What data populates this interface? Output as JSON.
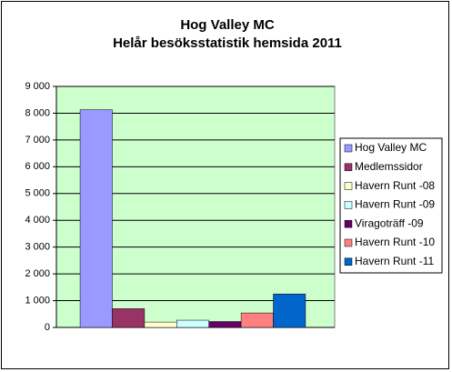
{
  "chart_data": {
    "type": "bar",
    "title": "Hog Valley MC",
    "subtitle": "Helår besöksstatistik hemsida 2011",
    "categories": [
      null
    ],
    "series": [
      {
        "name": "Hog Valley MC",
        "color": "#9999ff",
        "values": [
          8130
        ]
      },
      {
        "name": "Medlemssidor",
        "color": "#993366",
        "values": [
          700
        ]
      },
      {
        "name": "Havern Runt -08",
        "color": "#ffffcc",
        "values": [
          200
        ]
      },
      {
        "name": "Havern Runt -09",
        "color": "#ccffff",
        "values": [
          270
        ]
      },
      {
        "name": "Viragoträff -09",
        "color": "#660066",
        "values": [
          220
        ]
      },
      {
        "name": "Havern Runt -10",
        "color": "#ff8080",
        "values": [
          540
        ]
      },
      {
        "name": "Havern Runt -11",
        "color": "#0066cc",
        "values": [
          1250
        ]
      }
    ],
    "ylim": [
      0,
      9000
    ],
    "yticks": [
      {
        "value": 0,
        "label": "0"
      },
      {
        "value": 1000,
        "label": "1 000"
      },
      {
        "value": 2000,
        "label": "2 000"
      },
      {
        "value": 3000,
        "label": "3 000"
      },
      {
        "value": 4000,
        "label": "4 000"
      },
      {
        "value": 5000,
        "label": "5 000"
      },
      {
        "value": 6000,
        "label": "6 000"
      },
      {
        "value": 7000,
        "label": "7 000"
      },
      {
        "value": 8000,
        "label": "8 000"
      },
      {
        "value": 9000,
        "label": "9 000"
      }
    ],
    "grid": true,
    "legend": "right",
    "plot_background": "#ccffcc"
  }
}
